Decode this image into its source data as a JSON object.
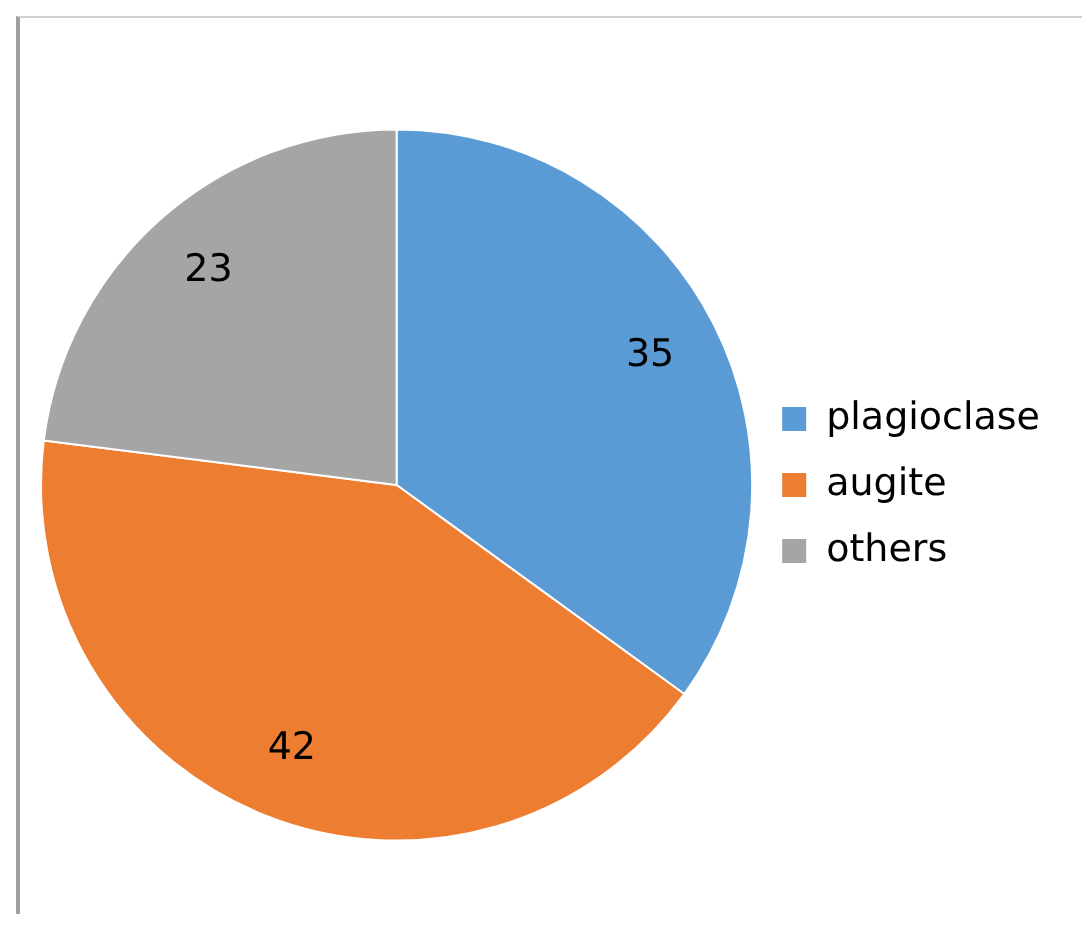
{
  "chart_data": {
    "type": "pie",
    "categories": [
      "plagioclase",
      "augite",
      "others"
    ],
    "values": [
      35,
      42,
      23
    ],
    "colors": [
      "#5b9bd5",
      "#ed7d31",
      "#a5a5a5"
    ],
    "data_labels": true,
    "legend": "right"
  }
}
